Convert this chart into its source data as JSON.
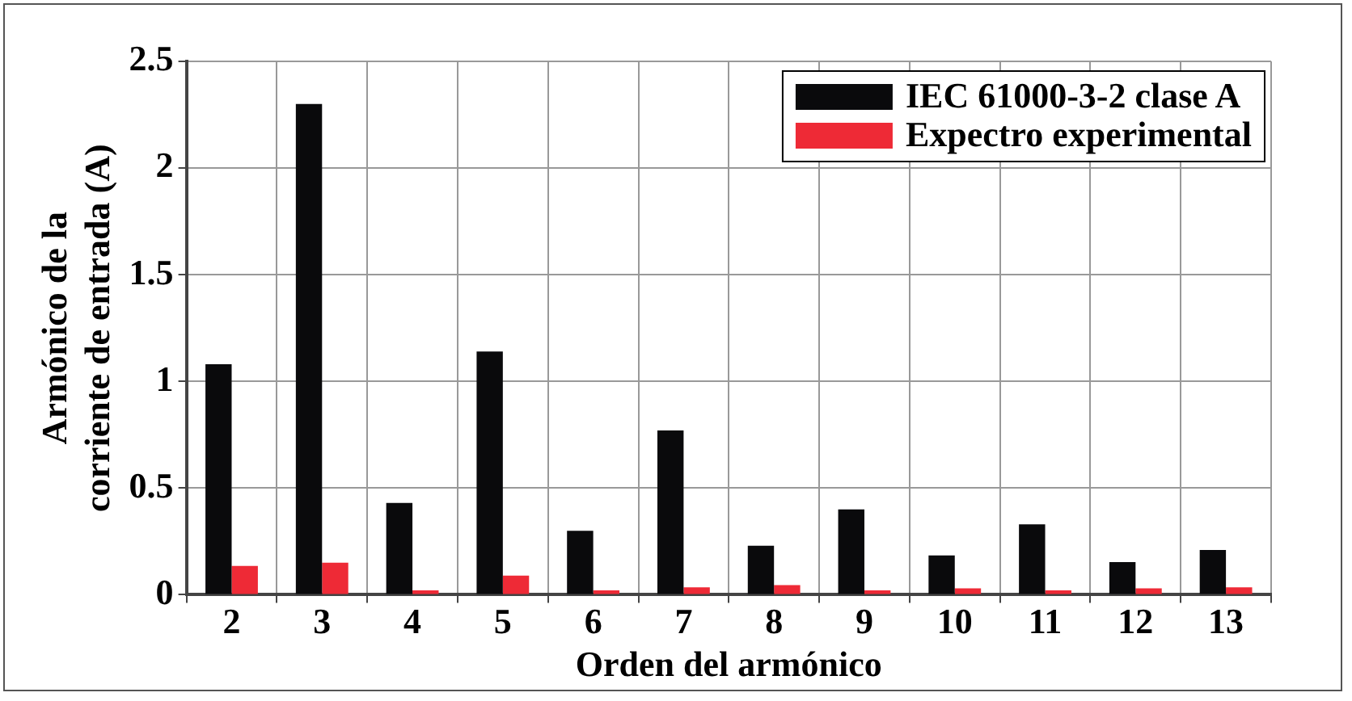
{
  "chart_data": {
    "type": "bar",
    "xlabel": "Orden del armónico",
    "ylabel": "Armónico de la\ncorriente de entrada (A)",
    "categories": [
      "2",
      "3",
      "4",
      "5",
      "6",
      "7",
      "8",
      "9",
      "10",
      "11",
      "12",
      "13"
    ],
    "series": [
      {
        "name": "IEC 61000-3-2 clase A",
        "color": "#0a0a0c",
        "values": [
          1.08,
          2.3,
          0.43,
          1.14,
          0.3,
          0.77,
          0.23,
          0.4,
          0.184,
          0.33,
          0.153,
          0.21
        ]
      },
      {
        "name": "Expectro experimental",
        "color": "#ee2a36",
        "values": [
          0.135,
          0.15,
          0.02,
          0.09,
          0.02,
          0.035,
          0.045,
          0.02,
          0.03,
          0.02,
          0.03,
          0.035
        ]
      }
    ],
    "ylim": [
      0,
      2.5
    ],
    "yticks": [
      0,
      0.5,
      1,
      1.5,
      2,
      2.5
    ],
    "grid": true,
    "legend": "top right"
  }
}
